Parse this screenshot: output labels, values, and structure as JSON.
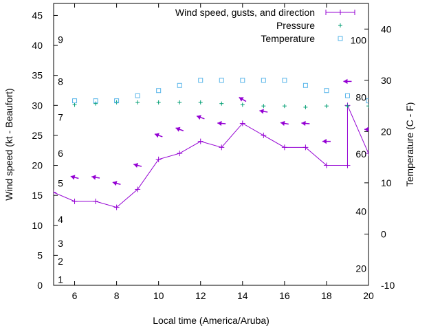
{
  "chart_data": {
    "type": "line",
    "xlabel": "Local time (America/Aruba)",
    "ylabel": "Wind speed (kt - Beaufort)",
    "y2label": "Temperature (C - F)",
    "xlim": [
      5,
      20
    ],
    "ylim": [
      0,
      47
    ],
    "y2lim": [
      -10,
      45
    ],
    "x_ticks": [
      "6",
      "8",
      "10",
      "12",
      "14",
      "16",
      "18",
      "20"
    ],
    "y_ticks": [
      "0",
      "5",
      "10",
      "15",
      "20",
      "25",
      "30",
      "35",
      "40",
      "45"
    ],
    "y2_ticks": [
      "-10",
      "0",
      "10",
      "20",
      "30",
      "40"
    ],
    "beaufort_labels": [
      {
        "text": "1",
        "kt": 1
      },
      {
        "text": "2",
        "kt": 4
      },
      {
        "text": "3",
        "kt": 7
      },
      {
        "text": "4",
        "kt": 11
      },
      {
        "text": "5",
        "kt": 17
      },
      {
        "text": "6",
        "kt": 22
      },
      {
        "text": "7",
        "kt": 28
      },
      {
        "text": "8",
        "kt": 34
      },
      {
        "text": "9",
        "kt": 41
      }
    ],
    "fahrenheit_labels": [
      {
        "text": "20",
        "c": -6.7
      },
      {
        "text": "40",
        "c": 4.4
      },
      {
        "text": "60",
        "c": 15.6
      },
      {
        "text": "80",
        "c": 26.7
      },
      {
        "text": "100",
        "c": 37.8
      }
    ],
    "series": [
      {
        "name": "Wind speed, gusts, and direction",
        "color": "#9400d3",
        "x": [
          5,
          6,
          7,
          8,
          9,
          10,
          11,
          12,
          13,
          14,
          15,
          16,
          17,
          18,
          19,
          19,
          20
        ],
        "values": [
          15.5,
          14,
          14,
          13,
          16,
          21,
          22,
          24,
          23,
          27,
          25,
          23,
          23,
          20,
          20,
          30,
          22
        ]
      },
      {
        "name": "Pressure",
        "color": "#009e73",
        "x": [
          6,
          7,
          8,
          9,
          10,
          11,
          12,
          13,
          14,
          15,
          16,
          17,
          18,
          19,
          20
        ],
        "values": [
          30.1,
          30.3,
          30.5,
          30.5,
          30.5,
          30.5,
          30.5,
          30.3,
          30.1,
          29.9,
          29.9,
          29.7,
          29.9,
          29.9,
          29.9
        ]
      },
      {
        "name": "Temperature",
        "color": "#56b4e9",
        "x": [
          6,
          7,
          8,
          9,
          10,
          11,
          12,
          13,
          14,
          15,
          16,
          17,
          18,
          19,
          20
        ],
        "values": [
          26,
          26,
          26,
          27,
          28,
          29,
          30,
          30,
          30,
          30,
          30,
          29,
          28,
          27,
          26
        ]
      }
    ],
    "wind_direction_arrows": {
      "x": [
        6,
        7,
        8,
        9,
        10,
        11,
        12,
        13,
        14,
        15,
        16,
        17,
        18,
        19,
        20
      ],
      "y": [
        18,
        18,
        17,
        20,
        25,
        26,
        28,
        27,
        31,
        29,
        27,
        27,
        24,
        34,
        26
      ],
      "angle_deg": [
        165,
        170,
        165,
        165,
        160,
        160,
        160,
        175,
        150,
        170,
        170,
        175,
        180,
        180,
        180
      ]
    }
  }
}
